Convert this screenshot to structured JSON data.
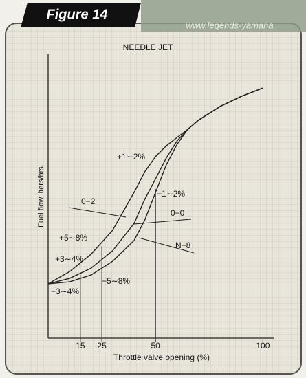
{
  "header": {
    "figure": "Figure 14",
    "watermark": "www.legends-yamaha"
  },
  "chart_data": {
    "type": "line",
    "title": "NEEDLE JET",
    "x_label": "Throttle valve opening (%)",
    "y_label": "Fuel flow liters/hrs.",
    "x": [
      0,
      10,
      20,
      30,
      40,
      45,
      50,
      55,
      60,
      65,
      70,
      80,
      90,
      100
    ],
    "series": [
      {
        "name": "0−2",
        "color": "#222222",
        "values": [
          19.1,
          23.4,
          29.5,
          37.9,
          51.2,
          58.5,
          63.8,
          67.6,
          70.5,
          73.4,
          76.6,
          81.4,
          85,
          87.9
        ]
      },
      {
        "name": "0−0",
        "color": "#222222",
        "values": [
          19.1,
          21,
          24.6,
          30.7,
          40.3,
          48.8,
          56,
          63.3,
          69.3,
          73.4,
          76.6,
          81.4,
          85,
          87.9
        ]
      },
      {
        "name": "N−8",
        "color": "#222222",
        "values": [
          19.1,
          19.8,
          22.2,
          27,
          34.3,
          41.5,
          51.2,
          60.9,
          68.1,
          73.4,
          76.6,
          81.4,
          85,
          87.9
        ]
      }
    ],
    "xlim": [
      0,
      105
    ],
    "ylim": [
      0,
      100
    ],
    "xticks": [
      15,
      25,
      50,
      100
    ],
    "annotations": [
      "+1∼2%",
      "−1∼2%",
      "+5∼8%",
      "+3∼4%",
      "−3∼4%",
      "−5∼8%"
    ]
  }
}
